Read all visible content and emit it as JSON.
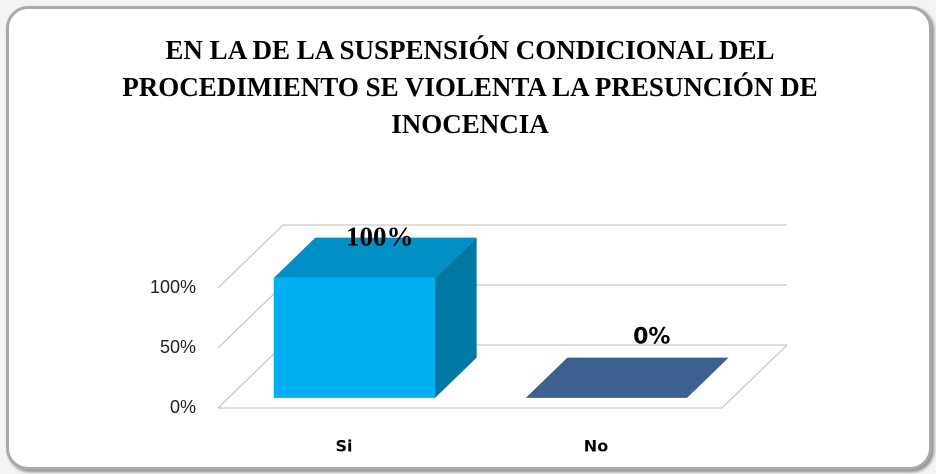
{
  "chart_data": {
    "type": "bar3d",
    "title": "EN LA DE LA SUSPENSIÓN CONDICIONAL DEL PROCEDIMIENTO SE VIOLENTA LA PRESUNCIÓN DE INOCENCIA",
    "categories": [
      "Si",
      "No"
    ],
    "values": [
      100,
      0
    ],
    "value_labels": [
      "100%",
      "0%"
    ],
    "colors": [
      "#00b0f0",
      "#3c6190"
    ],
    "ylim": [
      0,
      100
    ],
    "yticks": [
      {
        "value": 0,
        "label": "0%"
      },
      {
        "value": 50,
        "label": "50%"
      },
      {
        "value": 100,
        "label": "100%"
      }
    ],
    "grid": true
  }
}
